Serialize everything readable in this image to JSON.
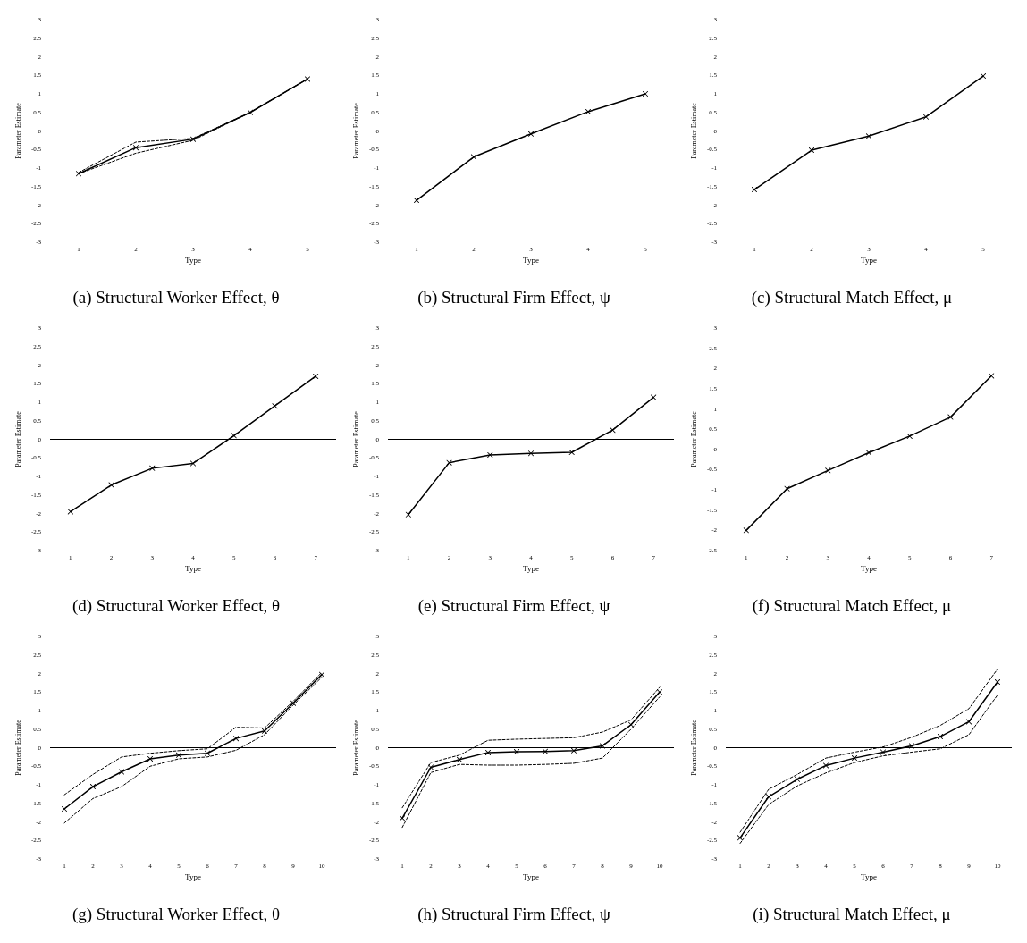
{
  "chart_data": [
    {
      "type": "line",
      "title": "(a) Structural Worker Effect, θ",
      "xlabel": "Type",
      "ylabel": "Parameter Estimate",
      "categories": [
        "1",
        "2",
        "3",
        "4",
        "5"
      ],
      "series": [
        {
          "color": "#000000",
          "line_style": "solid",
          "marker": "cross",
          "values": [
            -1.15,
            -0.45,
            -0.22,
            0.5,
            1.4
          ]
        },
        {
          "color": "#000000",
          "line_style": "dashed",
          "marker": "none",
          "values": [
            -1.12,
            -0.3,
            -0.2,
            0.5,
            1.4
          ]
        },
        {
          "color": "#000000",
          "line_style": "dashed",
          "marker": "none",
          "values": [
            -1.15,
            -0.6,
            -0.25,
            0.5,
            1.4
          ]
        }
      ],
      "ylim": [
        -3,
        3
      ],
      "yticks": [
        -3,
        -2.5,
        -2,
        -1.5,
        -1,
        -0.5,
        0,
        0.5,
        1,
        1.5,
        2,
        2.5,
        3
      ],
      "ref_lines": [
        {
          "axis": "y",
          "value": 0,
          "color": "#000000"
        }
      ],
      "grid": false
    },
    {
      "type": "line",
      "title": "(b) Structural Firm Effect, ψ",
      "xlabel": "Type",
      "ylabel": "Parameter Estimate",
      "categories": [
        "1",
        "2",
        "3",
        "4",
        "5"
      ],
      "series": [
        {
          "color": "#000000",
          "line_style": "solid",
          "marker": "cross",
          "values": [
            -1.87,
            -0.7,
            -0.08,
            0.52,
            1.0
          ]
        }
      ],
      "ylim": [
        -3,
        3
      ],
      "yticks": [
        -3,
        -2.5,
        -2,
        -1.5,
        -1,
        -0.5,
        0,
        0.5,
        1,
        1.5,
        2,
        2.5,
        3
      ],
      "ref_lines": [
        {
          "axis": "y",
          "value": 0,
          "color": "#000000"
        }
      ],
      "grid": false
    },
    {
      "type": "line",
      "title": "(c) Structural Match Effect, μ",
      "xlabel": "Type",
      "ylabel": "Parameter Estimate",
      "categories": [
        "1",
        "2",
        "3",
        "4",
        "5"
      ],
      "series": [
        {
          "color": "#000000",
          "line_style": "solid",
          "marker": "cross",
          "values": [
            -1.58,
            -0.52,
            -0.14,
            0.38,
            1.48
          ]
        }
      ],
      "ylim": [
        -3,
        3
      ],
      "yticks": [
        -3,
        -2.5,
        -2,
        -1.5,
        -1,
        -0.5,
        0,
        0.5,
        1,
        1.5,
        2,
        2.5,
        3
      ],
      "ref_lines": [
        {
          "axis": "y",
          "value": 0,
          "color": "#000000"
        }
      ],
      "grid": false
    },
    {
      "type": "line",
      "title": "(d) Structural Worker Effect, θ",
      "xlabel": "Type",
      "ylabel": "Parameter Estimate",
      "categories": [
        "1",
        "2",
        "3",
        "4",
        "5",
        "6",
        "7"
      ],
      "series": [
        {
          "color": "#000000",
          "line_style": "solid",
          "marker": "cross",
          "values": [
            -1.95,
            -1.23,
            -0.78,
            -0.65,
            0.1,
            0.9,
            1.7
          ]
        }
      ],
      "ylim": [
        -3,
        3
      ],
      "yticks": [
        -3,
        -2.5,
        -2,
        -1.5,
        -1,
        -0.5,
        0,
        0.5,
        1,
        1.5,
        2,
        2.5,
        3
      ],
      "ref_lines": [
        {
          "axis": "y",
          "value": 0,
          "color": "#000000"
        }
      ],
      "grid": false
    },
    {
      "type": "line",
      "title": "(e) Structural Firm Effect, ψ",
      "xlabel": "Type",
      "ylabel": "Parameter Estimate",
      "categories": [
        "1",
        "2",
        "3",
        "4",
        "5",
        "6",
        "7"
      ],
      "series": [
        {
          "color": "#000000",
          "line_style": "solid",
          "marker": "cross",
          "values": [
            -2.03,
            -0.63,
            -0.42,
            -0.38,
            -0.35,
            0.25,
            1.13
          ]
        }
      ],
      "ylim": [
        -3,
        3
      ],
      "yticks": [
        -3,
        -2.5,
        -2,
        -1.5,
        -1,
        -0.5,
        0,
        0.5,
        1,
        1.5,
        2,
        2.5,
        3
      ],
      "ref_lines": [
        {
          "axis": "y",
          "value": 0,
          "color": "#000000"
        }
      ],
      "grid": false
    },
    {
      "type": "line",
      "title": "(f) Structural Match Effect, μ",
      "xlabel": "Type",
      "ylabel": "Parameter Estimate",
      "categories": [
        "1",
        "2",
        "3",
        "4",
        "5",
        "6",
        "7"
      ],
      "series": [
        {
          "color": "#000000",
          "line_style": "solid",
          "marker": "cross",
          "values": [
            -2.0,
            -0.97,
            -0.52,
            -0.08,
            0.33,
            0.8,
            1.82
          ]
        }
      ],
      "ylim": [
        -2.5,
        3
      ],
      "yticks": [
        -2.5,
        -2,
        -1.5,
        -1,
        -0.5,
        0,
        0.5,
        1,
        1.5,
        2,
        2.5,
        3
      ],
      "ref_lines": [
        {
          "axis": "y",
          "value": 0,
          "color": "#000000"
        }
      ],
      "grid": false
    },
    {
      "type": "line",
      "title": "(g) Structural Worker Effect, θ",
      "xlabel": "Type",
      "ylabel": "Parameter Estimate",
      "categories": [
        "1",
        "2",
        "3",
        "4",
        "5",
        "6",
        "7",
        "8",
        "9",
        "10"
      ],
      "series": [
        {
          "color": "#000000",
          "line_style": "solid",
          "marker": "cross",
          "values": [
            -1.65,
            -1.05,
            -0.65,
            -0.3,
            -0.2,
            -0.15,
            0.25,
            0.45,
            1.2,
            1.97
          ]
        },
        {
          "color": "#000000",
          "line_style": "dashed",
          "marker": "none",
          "values": [
            -1.27,
            -0.72,
            -0.25,
            -0.15,
            -0.08,
            -0.03,
            0.55,
            0.53,
            1.25,
            2.03
          ]
        },
        {
          "color": "#000000",
          "line_style": "dashed",
          "marker": "none",
          "values": [
            -2.03,
            -1.37,
            -1.05,
            -0.5,
            -0.3,
            -0.25,
            -0.07,
            0.35,
            1.15,
            1.9
          ]
        }
      ],
      "ylim": [
        -3,
        3
      ],
      "yticks": [
        -3,
        -2.5,
        -2,
        -1.5,
        -1,
        -0.5,
        0,
        0.5,
        1,
        1.5,
        2,
        2.5,
        3
      ],
      "ref_lines": [
        {
          "axis": "y",
          "value": 0,
          "color": "#000000"
        }
      ],
      "grid": false
    },
    {
      "type": "line",
      "title": "(h) Structural Firm Effect, ψ",
      "xlabel": "Type",
      "ylabel": "Parameter Estimate",
      "categories": [
        "1",
        "2",
        "3",
        "4",
        "5",
        "6",
        "7",
        "8",
        "9",
        "10"
      ],
      "series": [
        {
          "color": "#000000",
          "line_style": "solid",
          "marker": "cross",
          "values": [
            -1.9,
            -0.53,
            -0.32,
            -0.13,
            -0.11,
            -0.1,
            -0.08,
            0.05,
            0.62,
            1.5
          ]
        },
        {
          "color": "#000000",
          "line_style": "dashed",
          "marker": "none",
          "values": [
            -1.62,
            -0.4,
            -0.2,
            0.2,
            0.23,
            0.25,
            0.27,
            0.42,
            0.75,
            1.63
          ]
        },
        {
          "color": "#000000",
          "line_style": "dashed",
          "marker": "none",
          "values": [
            -2.15,
            -0.67,
            -0.45,
            -0.47,
            -0.47,
            -0.45,
            -0.42,
            -0.28,
            0.5,
            1.37
          ]
        }
      ],
      "ylim": [
        -3,
        3
      ],
      "yticks": [
        -3,
        -2.5,
        -2,
        -1.5,
        -1,
        -0.5,
        0,
        0.5,
        1,
        1.5,
        2,
        2.5,
        3
      ],
      "ref_lines": [
        {
          "axis": "y",
          "value": 0,
          "color": "#000000"
        }
      ],
      "grid": false
    },
    {
      "type": "line",
      "title": "(i) Structural Match Effect, μ",
      "xlabel": "Type",
      "ylabel": "Parameter Estimate",
      "categories": [
        "1",
        "2",
        "3",
        "4",
        "5",
        "6",
        "7",
        "8",
        "9",
        "10"
      ],
      "series": [
        {
          "color": "#000000",
          "line_style": "solid",
          "marker": "cross",
          "values": [
            -2.43,
            -1.32,
            -0.85,
            -0.48,
            -0.28,
            -0.12,
            0.05,
            0.3,
            0.7,
            1.77
          ]
        },
        {
          "color": "#000000",
          "line_style": "dashed",
          "marker": "none",
          "values": [
            -2.28,
            -1.12,
            -0.72,
            -0.28,
            -0.12,
            0.02,
            0.28,
            0.6,
            1.05,
            2.12
          ]
        },
        {
          "color": "#000000",
          "line_style": "dashed",
          "marker": "none",
          "values": [
            -2.58,
            -1.53,
            -1.03,
            -0.68,
            -0.4,
            -0.22,
            -0.12,
            -0.03,
            0.35,
            1.42
          ]
        }
      ],
      "ylim": [
        -3,
        3
      ],
      "yticks": [
        -3,
        -2.5,
        -2,
        -1.5,
        -1,
        -0.5,
        0,
        0.5,
        1,
        1.5,
        2,
        2.5,
        3
      ],
      "ref_lines": [
        {
          "axis": "y",
          "value": 0,
          "color": "#000000"
        }
      ],
      "grid": false
    }
  ]
}
